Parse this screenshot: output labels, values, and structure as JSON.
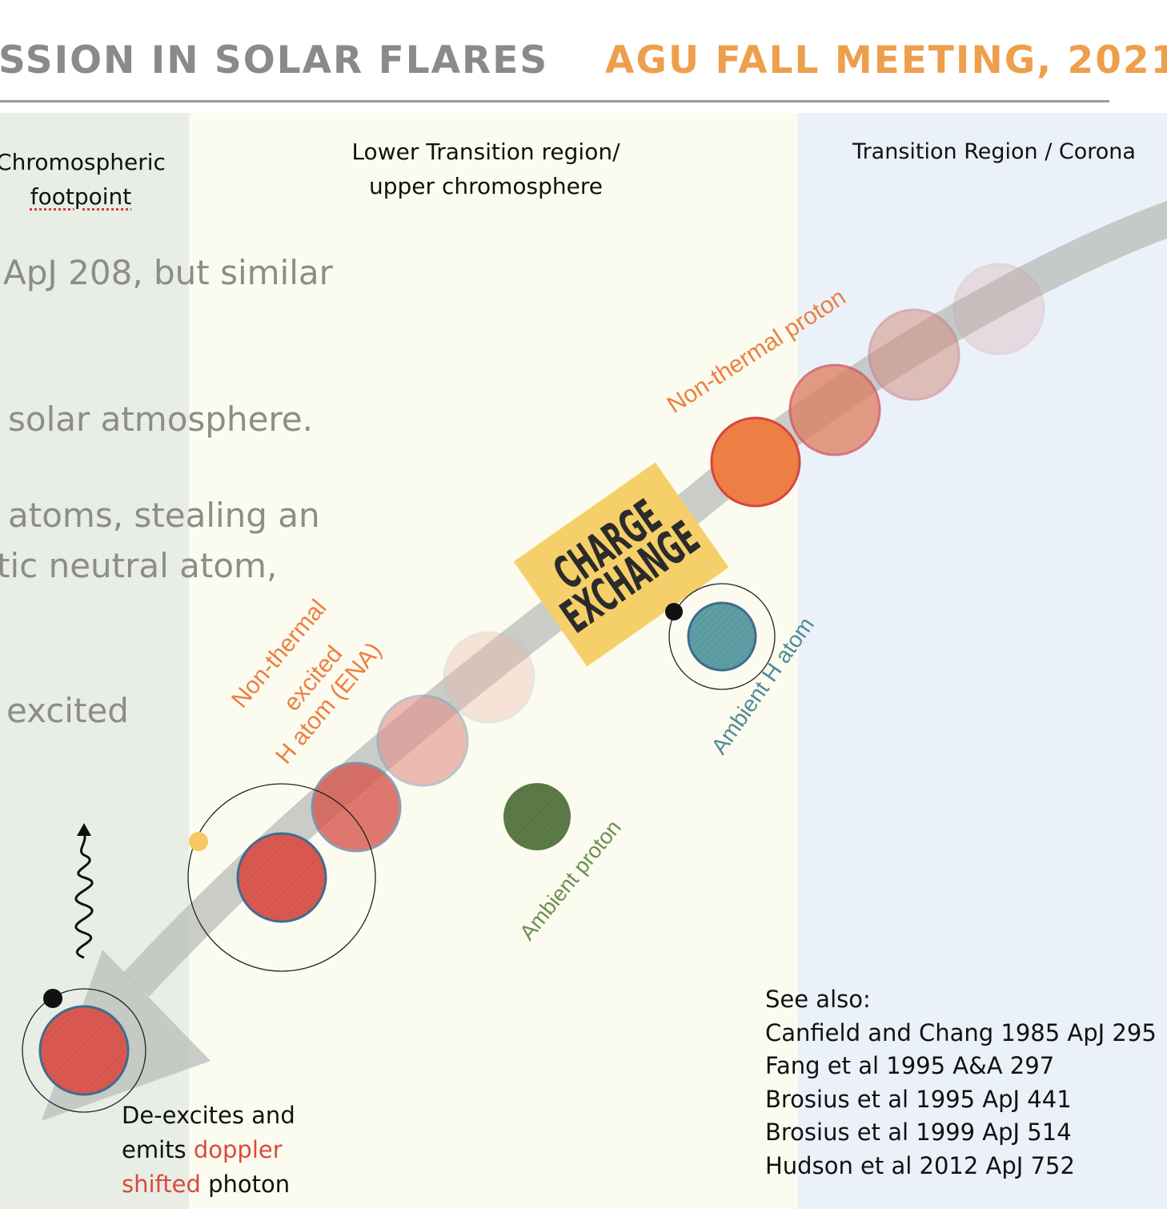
{
  "header": {
    "title_left": "SSION IN SOLAR FLARES",
    "title_right": "AGU FALL MEETING, 2021"
  },
  "regions": {
    "chromosphere_line1": "Chromospheric",
    "chromosphere_line2": "footpoint",
    "lower_tr_line1": "Lower Transition region/",
    "lower_tr_line2": "upper chromosphere",
    "corona": "Transition Region / Corona"
  },
  "background_text": {
    "line1": "ApJ 208, but similar",
    "line2": "solar atmosphere.",
    "line3": "atoms, stealing an",
    "line4": "tic neutral atom,",
    "line5": "excited"
  },
  "diagram": {
    "nonthermal_proton": "Non-thermal proton",
    "charge_exchange_1": "CHARGE",
    "charge_exchange_2": "EXCHANGE",
    "ambient_h_atom": "Ambient H atom",
    "ambient_proton": "Ambient proton",
    "ena_line1": "Non-thermal",
    "ena_line2": "excited",
    "ena_line3": "H atom (ENA)"
  },
  "caption": {
    "line1": "De-excites and",
    "line2_a": "emits ",
    "line2_b": "doppler",
    "line3_a": "shifted",
    "line3_b": " photon"
  },
  "see_also": {
    "heading": "See also:",
    "refs": [
      "Canfield and Chang 1985 ApJ 295",
      "Fang et al 1995 A&A 297",
      "Brosius et al 1995 ApJ 441",
      "Brosius et al 1999 ApJ 514",
      "Hudson et al 2012 ApJ 752"
    ]
  },
  "colors": {
    "title_gray": "#8a8a8a",
    "title_orange": "#ee9f4c",
    "proton_orange": "#ed7f45",
    "ena_red": "#d9584f",
    "ambient_teal": "#5f9ea5",
    "ambient_green": "#5c7a47",
    "charge_yellow": "#f5d06a"
  }
}
